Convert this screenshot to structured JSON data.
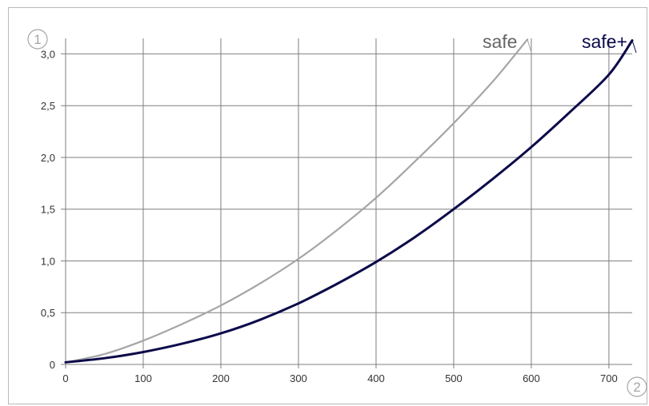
{
  "chart_data": {
    "type": "line",
    "xlim": [
      0,
      730
    ],
    "ylim": [
      0,
      3.15
    ],
    "x_ticks": [
      0,
      100,
      200,
      300,
      400,
      500,
      600,
      700
    ],
    "y_ticks": [
      0,
      0.5,
      1.0,
      1.5,
      2.0,
      2.5,
      3.0
    ],
    "x_tick_labels": [
      "0",
      "100",
      "200",
      "300",
      "400",
      "500",
      "600",
      "700"
    ],
    "y_tick_labels": [
      "0",
      "0,5",
      "1,0",
      "1,5",
      "2,0",
      "2,5",
      "3,0"
    ],
    "grid": true,
    "axis_badges": {
      "y": "1",
      "x": "2"
    },
    "series": [
      {
        "name": "safe",
        "color": "#a6a6a6",
        "x": [
          0,
          50,
          100,
          150,
          200,
          250,
          300,
          350,
          400,
          450,
          500,
          550,
          595
        ],
        "y": [
          0.02,
          0.1,
          0.23,
          0.39,
          0.57,
          0.78,
          1.02,
          1.3,
          1.61,
          1.96,
          2.33,
          2.73,
          3.14
        ]
      },
      {
        "name": "safe+",
        "color": "#0c0a4a",
        "x": [
          0,
          50,
          100,
          150,
          200,
          250,
          300,
          350,
          400,
          450,
          500,
          550,
          600,
          650,
          700,
          730
        ],
        "y": [
          0.02,
          0.06,
          0.12,
          0.2,
          0.3,
          0.43,
          0.59,
          0.78,
          0.99,
          1.23,
          1.5,
          1.79,
          2.1,
          2.44,
          2.8,
          3.13
        ]
      }
    ]
  }
}
